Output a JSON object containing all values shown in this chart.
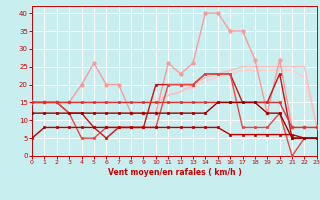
{
  "x": [
    0,
    1,
    2,
    3,
    4,
    5,
    6,
    7,
    8,
    9,
    10,
    11,
    12,
    13,
    14,
    15,
    16,
    17,
    18,
    19,
    20,
    21,
    22,
    23
  ],
  "lines": [
    {
      "y": [
        5,
        8,
        8,
        8,
        8,
        8,
        8,
        8,
        8,
        8,
        8,
        8,
        8,
        8,
        8,
        8,
        6,
        6,
        6,
        6,
        6,
        6,
        5,
        5
      ],
      "color": "#bb0000",
      "lw": 1.0,
      "marker": "s",
      "ms": 2.0,
      "zorder": 6
    },
    {
      "y": [
        12,
        12,
        12,
        12,
        12,
        12,
        12,
        12,
        12,
        12,
        12,
        12,
        12,
        12,
        12,
        15,
        15,
        15,
        15,
        12,
        12,
        5,
        5,
        5
      ],
      "color": "#990000",
      "lw": 1.0,
      "marker": "s",
      "ms": 2.0,
      "zorder": 6
    },
    {
      "y": [
        15,
        15,
        15,
        15,
        15,
        15,
        15,
        15,
        15,
        15,
        15,
        15,
        15,
        15,
        15,
        15,
        15,
        15,
        15,
        15,
        15,
        8,
        8,
        8
      ],
      "color": "#dd3333",
      "lw": 1.0,
      "marker": "s",
      "ms": 2.0,
      "zorder": 5
    },
    {
      "y": [
        15,
        15,
        15,
        12,
        12,
        8,
        5,
        8,
        8,
        8,
        20,
        20,
        20,
        20,
        23,
        23,
        23,
        15,
        15,
        15,
        23,
        5,
        5,
        5
      ],
      "color": "#cc1111",
      "lw": 1.0,
      "marker": "s",
      "ms": 2.0,
      "zorder": 4
    },
    {
      "y": [
        15,
        15,
        15,
        12,
        5,
        5,
        8,
        8,
        8,
        8,
        8,
        20,
        20,
        20,
        23,
        23,
        23,
        8,
        8,
        8,
        12,
        0,
        5,
        5
      ],
      "color": "#ee4444",
      "lw": 1.0,
      "marker": "s",
      "ms": 2.0,
      "zorder": 4
    },
    {
      "y": [
        15,
        15,
        15,
        15,
        20,
        26,
        20,
        20,
        12,
        12,
        12,
        26,
        23,
        26,
        40,
        40,
        35,
        35,
        27,
        12,
        27,
        8,
        8,
        8
      ],
      "color": "#ff9999",
      "lw": 1.0,
      "marker": "o",
      "ms": 2.5,
      "zorder": 3
    },
    {
      "y": [
        15,
        15,
        15,
        15,
        15,
        15,
        15,
        15,
        15,
        15,
        15,
        17,
        18,
        20,
        22,
        23,
        24,
        25,
        25,
        25,
        25,
        25,
        25,
        8
      ],
      "color": "#ffbbbb",
      "lw": 1.0,
      "marker": null,
      "ms": 0,
      "zorder": 2
    },
    {
      "y": [
        15,
        15,
        15,
        15,
        15,
        15,
        15,
        15,
        15,
        15,
        16,
        17,
        18,
        19,
        21,
        22,
        23,
        24,
        24,
        24,
        24,
        24,
        22,
        8
      ],
      "color": "#ffcccc",
      "lw": 1.0,
      "marker": null,
      "ms": 0,
      "zorder": 1
    }
  ],
  "xlim": [
    0,
    23
  ],
  "ylim": [
    0,
    42
  ],
  "yticks": [
    0,
    5,
    10,
    15,
    20,
    25,
    30,
    35,
    40
  ],
  "xticks": [
    0,
    1,
    2,
    3,
    4,
    5,
    6,
    7,
    8,
    9,
    10,
    11,
    12,
    13,
    14,
    15,
    16,
    17,
    18,
    19,
    20,
    21,
    22,
    23
  ],
  "xlabel": "Vent moyen/en rafales ( km/h )",
  "bg_color": "#c8eef0",
  "grid_color": "#aadddd",
  "tick_color": "#cc0000",
  "xlabel_color": "#cc0000",
  "figsize": [
    3.2,
    2.0
  ],
  "dpi": 100
}
